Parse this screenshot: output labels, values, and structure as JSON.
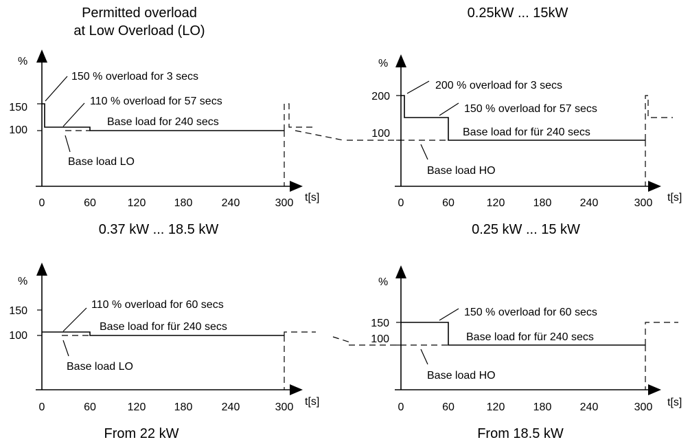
{
  "headers": {
    "top_left_1": "Permitted overload",
    "top_left_2": "at Low Overload (LO)",
    "top_right": "0.25kW ... 15kW",
    "mid_left": "0.37 kW ... 18.5 kW",
    "mid_right": "0.25 kW ... 15 kW",
    "bottom_left": "From 22 kW",
    "bottom_right": "From 18.5 kW"
  },
  "axis": {
    "y_label": "%",
    "x_label": "t[s]",
    "x_ticks": [
      "0",
      "60",
      "120",
      "180",
      "240",
      "300"
    ]
  },
  "panels": [
    {
      "id": "lo-small",
      "y_ticks": [
        "150",
        "100"
      ],
      "annotations": [
        "150 %  overload for 3 secs",
        "110 % overload for 57 secs",
        "Base load for 240 secs",
        "Base load LO"
      ]
    },
    {
      "id": "ho-small",
      "y_ticks": [
        "200",
        "100"
      ],
      "annotations": [
        "200 % overload for 3 secs",
        "150 % overload for 57 secs",
        "Base load for für 240 secs",
        "Base load HO"
      ]
    },
    {
      "id": "lo-large",
      "y_ticks": [
        "150",
        "100"
      ],
      "annotations": [
        "110 % overload for 60 secs",
        "Base load for für 240 secs",
        "Base load LO"
      ]
    },
    {
      "id": "ho-large",
      "y_ticks": [
        "150",
        "100"
      ],
      "annotations": [
        "150 % overload for 60 secs",
        "Base load for für 240 secs",
        "Base load HO"
      ]
    }
  ],
  "chart_data": [
    {
      "type": "line",
      "xlim": [
        0,
        300
      ],
      "series": [
        {
          "x": [
            0,
            3,
            3,
            60,
            60,
            300
          ],
          "values": [
            150,
            150,
            110,
            110,
            100,
            100
          ]
        }
      ]
    },
    {
      "type": "line",
      "xlim": [
        0,
        300
      ],
      "series": [
        {
          "x": [
            0,
            3,
            3,
            60,
            60,
            300
          ],
          "values": [
            200,
            200,
            150,
            150,
            100,
            100
          ]
        }
      ]
    },
    {
      "type": "line",
      "xlim": [
        0,
        300
      ],
      "series": [
        {
          "x": [
            0,
            60,
            60,
            300
          ],
          "values": [
            110,
            110,
            100,
            100
          ]
        }
      ]
    },
    {
      "type": "line",
      "xlim": [
        0,
        300
      ],
      "series": [
        {
          "x": [
            0,
            60,
            60,
            300
          ],
          "values": [
            150,
            150,
            100,
            100
          ]
        }
      ]
    }
  ]
}
